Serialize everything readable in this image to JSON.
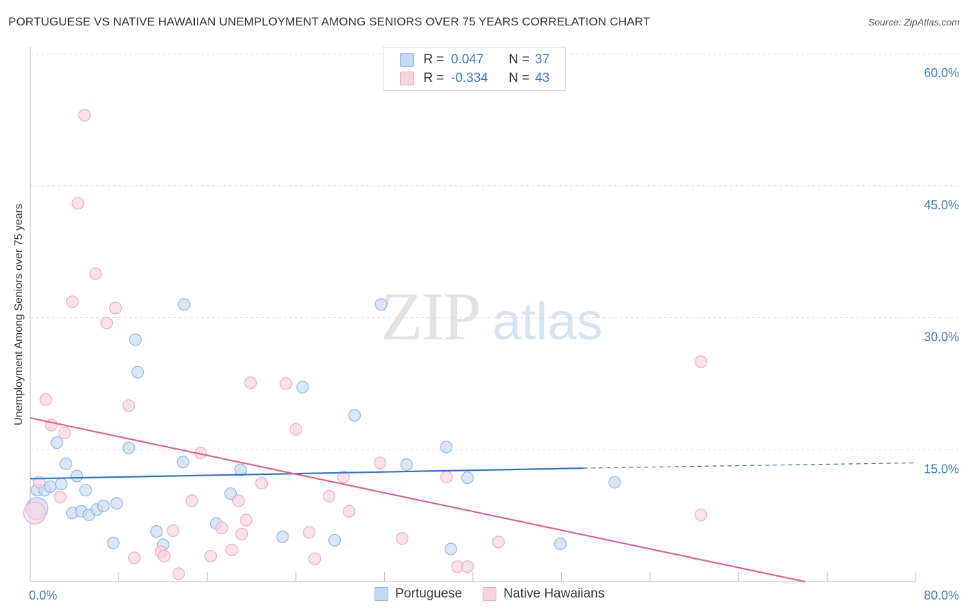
{
  "title": "PORTUGUESE VS NATIVE HAWAIIAN UNEMPLOYMENT AMONG SENIORS OVER 75 YEARS CORRELATION CHART",
  "source": "Source: ZipAtlas.com",
  "watermark": {
    "zip": "ZIP",
    "atlas": "atlas"
  },
  "legend_top": [
    {
      "r_label": "R =",
      "r_value": "0.047",
      "n_label": "N =",
      "n_value": "37"
    },
    {
      "r_label": "R =",
      "r_value": "-0.334",
      "n_label": "N =",
      "n_value": "43"
    }
  ],
  "chart_data": {
    "type": "scatter",
    "title": "PORTUGUESE VS NATIVE HAWAIIAN UNEMPLOYMENT AMONG SENIORS OVER 75 YEARS CORRELATION CHART",
    "xlabel": "",
    "ylabel": "Unemployment Among Seniors over 75 years",
    "xlim": [
      0,
      80
    ],
    "ylim": [
      0,
      60
    ],
    "grid": true,
    "legend_position": "bottom",
    "x_tick_labels": [
      {
        "value": 0,
        "label": "0.0%"
      },
      {
        "value": 80,
        "label": "80.0%"
      }
    ],
    "y_tick_labels": [
      {
        "value": 15,
        "label": "15.0%"
      },
      {
        "value": 30,
        "label": "30.0%"
      },
      {
        "value": 45,
        "label": "45.0%"
      },
      {
        "value": 60,
        "label": "60.0%"
      }
    ],
    "series": [
      {
        "name": "Portuguese",
        "color": "#8fb6e8",
        "fill": "#c4d8f3",
        "line_color": "#2f72cc",
        "R": 0.047,
        "N": 37,
        "trend": {
          "x0": 0,
          "y0": 11.7,
          "x1": 50,
          "y1": 12.9,
          "x1_dashed": 80,
          "y1_dashed": 13.5
        },
        "points": [
          [
            0.6,
            8.3
          ],
          [
            0.6,
            10.4
          ],
          [
            1.3,
            10.4
          ],
          [
            1.8,
            10.8
          ],
          [
            2.4,
            15.8
          ],
          [
            2.8,
            11.1
          ],
          [
            3.2,
            13.4
          ],
          [
            3.8,
            7.8
          ],
          [
            4.2,
            12.0
          ],
          [
            4.6,
            8.0
          ],
          [
            5.0,
            10.4
          ],
          [
            5.3,
            7.6
          ],
          [
            6.0,
            8.2
          ],
          [
            6.6,
            8.6
          ],
          [
            7.5,
            4.4
          ],
          [
            7.8,
            8.9
          ],
          [
            8.9,
            15.2
          ],
          [
            9.5,
            27.5
          ],
          [
            9.7,
            23.8
          ],
          [
            11.4,
            5.7
          ],
          [
            12.0,
            4.2
          ],
          [
            13.8,
            13.6
          ],
          [
            13.9,
            31.5
          ],
          [
            16.8,
            6.6
          ],
          [
            18.1,
            10.0
          ],
          [
            19.0,
            12.7
          ],
          [
            22.8,
            5.1
          ],
          [
            24.6,
            22.1
          ],
          [
            27.5,
            4.7
          ],
          [
            29.3,
            18.9
          ],
          [
            31.7,
            31.5
          ],
          [
            34.0,
            13.3
          ],
          [
            37.6,
            15.3
          ],
          [
            38.0,
            3.7
          ],
          [
            39.5,
            11.8
          ],
          [
            47.9,
            4.3
          ],
          [
            52.8,
            11.3
          ]
        ]
      },
      {
        "name": "Native Hawaiians",
        "color": "#f2a7c0",
        "fill": "#f9d2df",
        "line_color": "#e0608b",
        "R": -0.334,
        "N": 43,
        "trend": {
          "x0": 0,
          "y0": 18.6,
          "x1": 70,
          "y1": 0
        },
        "points": [
          [
            0.4,
            7.8
          ],
          [
            0.8,
            11.3
          ],
          [
            1.4,
            20.7
          ],
          [
            1.9,
            17.8
          ],
          [
            2.7,
            9.6
          ],
          [
            3.1,
            16.9
          ],
          [
            3.8,
            31.8
          ],
          [
            4.3,
            43.0
          ],
          [
            4.9,
            53.0
          ],
          [
            5.9,
            35.0
          ],
          [
            6.9,
            29.4
          ],
          [
            7.7,
            31.1
          ],
          [
            8.9,
            20.0
          ],
          [
            9.4,
            2.7
          ],
          [
            11.8,
            3.4
          ],
          [
            12.1,
            2.9
          ],
          [
            12.9,
            5.8
          ],
          [
            13.4,
            0.9
          ],
          [
            14.6,
            9.2
          ],
          [
            15.4,
            14.6
          ],
          [
            16.3,
            2.9
          ],
          [
            17.3,
            6.1
          ],
          [
            18.2,
            3.6
          ],
          [
            18.8,
            9.2
          ],
          [
            19.1,
            5.4
          ],
          [
            19.5,
            7.0
          ],
          [
            19.9,
            22.6
          ],
          [
            20.9,
            11.2
          ],
          [
            23.1,
            22.5
          ],
          [
            24.0,
            17.3
          ],
          [
            25.2,
            5.6
          ],
          [
            25.7,
            2.6
          ],
          [
            27.0,
            9.7
          ],
          [
            28.3,
            11.9
          ],
          [
            28.8,
            8.0
          ],
          [
            31.6,
            13.5
          ],
          [
            33.6,
            4.9
          ],
          [
            37.6,
            11.9
          ],
          [
            38.6,
            1.7
          ],
          [
            39.5,
            1.7
          ],
          [
            42.3,
            4.5
          ],
          [
            60.6,
            25.0
          ],
          [
            60.6,
            7.6
          ]
        ]
      }
    ]
  }
}
